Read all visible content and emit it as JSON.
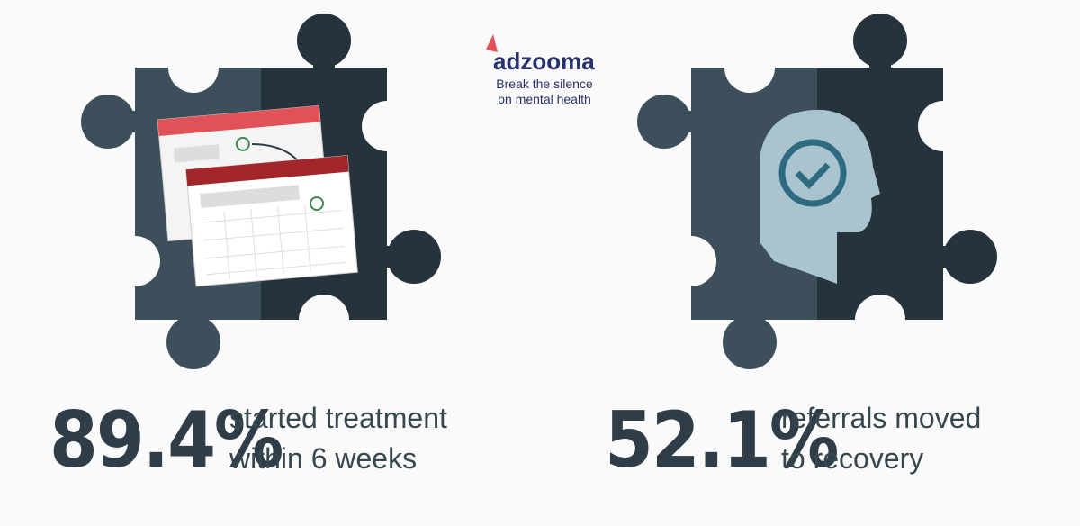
{
  "logo": {
    "name": "adzooma",
    "tagline": [
      "Break the silence",
      "on mental health"
    ]
  },
  "stats": [
    {
      "value": "89.4%",
      "label": [
        "started treatment",
        "within 6 weeks"
      ]
    },
    {
      "value": "52.1%",
      "label": [
        "referrals moved",
        "to recovery"
      ]
    }
  ]
}
